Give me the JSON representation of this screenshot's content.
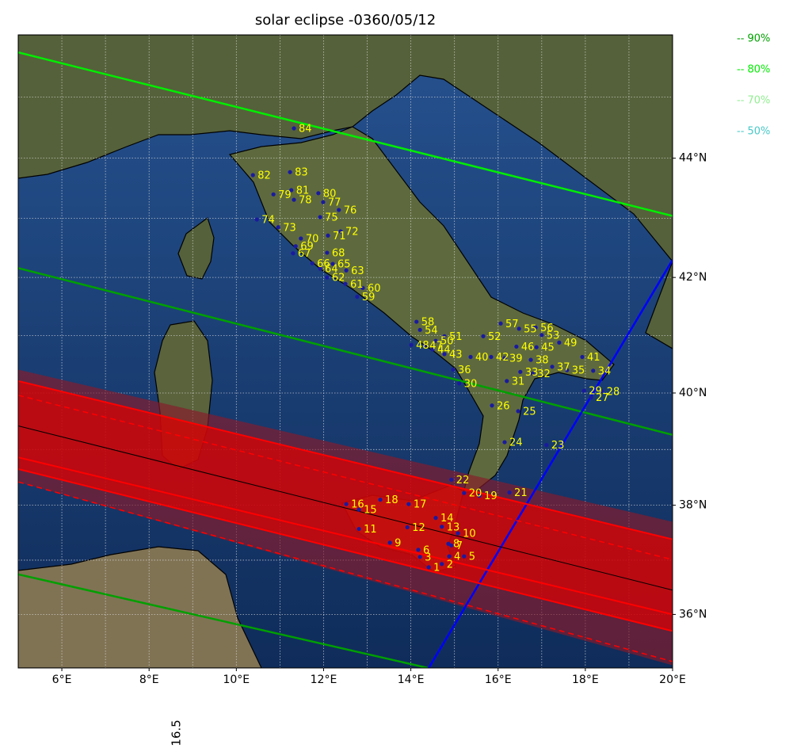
{
  "chart_data": {
    "type": "map",
    "title": "solar eclipse -0360/05/12",
    "projection": "mercator",
    "xlim": [
      5,
      20
    ],
    "ylim": [
      35,
      46
    ],
    "xticks": [
      {
        "value": 6,
        "label": "6°E"
      },
      {
        "value": 8,
        "label": "8°E"
      },
      {
        "value": 10,
        "label": "10°E"
      },
      {
        "value": 12,
        "label": "12°E"
      },
      {
        "value": 14,
        "label": "14°E"
      },
      {
        "value": 16,
        "label": "16°E"
      },
      {
        "value": 18,
        "label": "18°E"
      },
      {
        "value": 20,
        "label": "20°E"
      }
    ],
    "yticks": [
      {
        "value": 36,
        "label": "36°N"
      },
      {
        "value": 38,
        "label": "38°N"
      },
      {
        "value": 40,
        "label": "40°N"
      },
      {
        "value": 42,
        "label": "42°N"
      },
      {
        "value": 44,
        "label": "44°N"
      }
    ],
    "grid_lons": [
      6,
      7,
      8,
      9,
      10,
      11,
      12,
      13,
      14,
      15,
      16,
      17,
      18,
      19
    ],
    "grid_lats": [
      36,
      37,
      38,
      39,
      40,
      41,
      42,
      43,
      44,
      45
    ],
    "legend": [
      {
        "label": "-- 90%",
        "color": "#00a000"
      },
      {
        "label": "-- 80%",
        "color": "#00ee00"
      },
      {
        "label": "-- 70%",
        "color": "#90ee90"
      },
      {
        "label": "-- 50%",
        "color": "#48c8c8"
      }
    ],
    "bands": [
      {
        "color": "#8b1a2a",
        "opacity": 0.65,
        "lon": [
          5,
          20
        ],
        "top": [
          40.41,
          37.7
        ],
        "bottom": [
          38.42,
          35.05
        ]
      },
      {
        "color": "#e00000",
        "opacity": 0.7,
        "lon": [
          5,
          20
        ],
        "top": [
          40.21,
          37.38
        ],
        "bottom": [
          38.65,
          35.69
        ]
      }
    ],
    "lines": [
      {
        "color": "#00ee00",
        "dash": false,
        "width": 2.5,
        "lon": [
          5,
          20
        ],
        "lat": [
          45.72,
          43.04
        ]
      },
      {
        "color": "#00a000",
        "dash": false,
        "width": 2.5,
        "lon": [
          5,
          20
        ],
        "lat": [
          42.16,
          39.26
        ]
      },
      {
        "color": "#00a000",
        "dash": false,
        "width": 2.5,
        "lon": [
          5,
          14.39
        ],
        "lat": [
          36.74,
          35.0
        ]
      },
      {
        "color": "#0000ff",
        "dash": false,
        "width": 2.5,
        "lon": [
          14.41,
          20
        ],
        "lat": [
          35.0,
          42.3
        ]
      },
      {
        "color": "#ff0000",
        "dash": false,
        "width": 2,
        "lon": [
          5,
          20
        ],
        "lat": [
          40.21,
          37.38
        ]
      },
      {
        "color": "#ff0000",
        "dash": true,
        "width": 1.5,
        "lon": [
          5,
          20
        ],
        "lat": [
          39.96,
          37.01
        ]
      },
      {
        "color": "#000000",
        "dash": false,
        "width": 1,
        "lon": [
          5,
          20
        ],
        "lat": [
          39.42,
          36.45
        ]
      },
      {
        "color": "#ff0000",
        "dash": false,
        "width": 2,
        "lon": [
          5,
          20
        ],
        "lat": [
          38.86,
          36.0
        ]
      },
      {
        "color": "#ff0000",
        "dash": false,
        "width": 2,
        "lon": [
          5,
          20
        ],
        "lat": [
          38.65,
          35.69
        ]
      },
      {
        "color": "#ff0000",
        "dash": true,
        "width": 1.5,
        "lon": [
          5,
          20
        ],
        "lat": [
          38.42,
          35.12
        ]
      }
    ],
    "points": {
      "color": "#1a1aa0",
      "label_color": "#ffff00",
      "labels": [
        "1",
        "2",
        "3",
        "4",
        "5",
        "6",
        "7",
        "8",
        "9",
        "10",
        "11",
        "12",
        "13",
        "14",
        "15",
        "16",
        "17",
        "18",
        "19",
        "20",
        "21",
        "22",
        "23",
        "24",
        "25",
        "26",
        "27",
        "28",
        "29",
        "30",
        "31",
        "32",
        "33",
        "34",
        "35",
        "36",
        "37",
        "38",
        "39",
        "40",
        "41",
        "42",
        "43",
        "44",
        "45",
        "46",
        "47",
        "48",
        "49",
        "50",
        "51",
        "52",
        "53",
        "54",
        "55",
        "56",
        "57",
        "58",
        "59",
        "60",
        "61",
        "62",
        "63",
        "64",
        "65",
        "66",
        "67",
        "68",
        "69",
        "70",
        "71",
        "72",
        "73",
        "74",
        "75",
        "76",
        "77",
        "78",
        "79",
        "80",
        "81",
        "82",
        "83",
        "84"
      ],
      "lon": [
        14.41,
        14.71,
        14.21,
        14.88,
        15.22,
        14.17,
        14.93,
        14.86,
        13.52,
        15.08,
        12.81,
        13.92,
        14.71,
        14.57,
        12.81,
        12.52,
        13.95,
        13.3,
        15.57,
        15.22,
        16.26,
        14.93,
        17.11,
        16.15,
        16.46,
        15.86,
        18.13,
        18.38,
        17.97,
        15.11,
        16.2,
        16.79,
        16.51,
        18.18,
        17.58,
        14.97,
        17.24,
        16.75,
        16.15,
        15.37,
        17.93,
        15.84,
        14.77,
        14.5,
        16.88,
        16.42,
        14.32,
        14.01,
        17.4,
        14.57,
        14.77,
        15.66,
        17.0,
        14.21,
        16.48,
        16.86,
        16.06,
        14.13,
        12.77,
        12.9,
        12.5,
        12.08,
        12.52,
        11.92,
        12.21,
        11.74,
        11.3,
        12.08,
        11.36,
        11.48,
        12.1,
        12.39,
        10.96,
        10.47,
        11.92,
        12.35,
        11.99,
        11.32,
        10.85,
        11.88,
        11.26,
        10.38,
        11.23,
        11.32
      ],
      "lat": [
        36.87,
        36.93,
        37.06,
        37.07,
        37.07,
        37.19,
        37.27,
        37.3,
        37.32,
        37.49,
        37.57,
        37.6,
        37.61,
        37.77,
        37.92,
        38.02,
        38.02,
        38.1,
        38.17,
        38.22,
        38.23,
        38.46,
        39.08,
        39.13,
        39.68,
        39.78,
        39.92,
        40.03,
        40.04,
        40.17,
        40.21,
        40.34,
        40.37,
        40.39,
        40.4,
        40.41,
        40.46,
        40.58,
        40.61,
        40.63,
        40.63,
        40.63,
        40.68,
        40.76,
        40.8,
        40.81,
        40.83,
        40.84,
        40.88,
        40.91,
        40.99,
        40.99,
        41.01,
        41.1,
        41.12,
        41.14,
        41.21,
        41.24,
        41.67,
        41.82,
        41.89,
        42.0,
        42.12,
        42.15,
        42.23,
        42.24,
        42.41,
        42.42,
        42.53,
        42.66,
        42.71,
        42.78,
        42.85,
        42.98,
        43.02,
        43.14,
        43.27,
        43.31,
        43.4,
        43.42,
        43.47,
        43.72,
        43.77,
        44.49
      ]
    },
    "annotation": "16.5"
  }
}
